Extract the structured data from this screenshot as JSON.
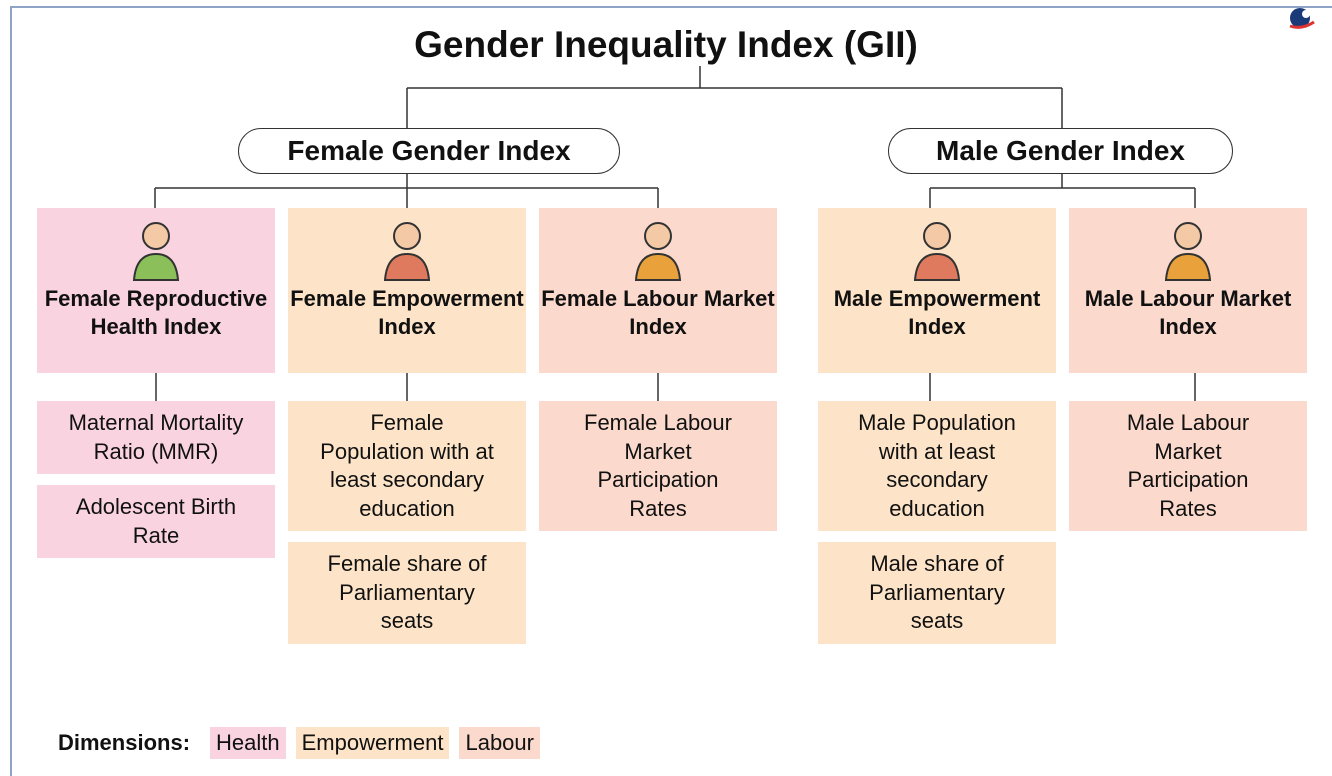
{
  "title": "Gender Inequality Index (GII)",
  "groups": [
    {
      "label": "Female Gender Index",
      "indices": [
        {
          "label": "Female Reproductive Health Index",
          "indicators": [
            "Maternal Mortality Ratio (MMR)",
            "Adolescent Birth Rate"
          ]
        },
        {
          "label": "Female Empowerment Index",
          "indicators": [
            "Female Population with at least secondary education",
            "Female share of Parliamentary seats"
          ]
        },
        {
          "label": "Female Labour Market Index",
          "indicators": [
            "Female Labour Market Participation Rates"
          ]
        }
      ]
    },
    {
      "label": "Male Gender Index",
      "indices": [
        {
          "label": "Male Empowerment Index",
          "indicators": [
            "Male Population with at least secondary education",
            "Male share of Parliamentary seats"
          ]
        },
        {
          "label": "Male Labour Market Index",
          "indicators": [
            "Male Labour Market Participation Rates"
          ]
        }
      ]
    }
  ],
  "legend": {
    "label": "Dimensions:",
    "items": [
      "Health",
      "Empowerment",
      "Labour"
    ]
  }
}
